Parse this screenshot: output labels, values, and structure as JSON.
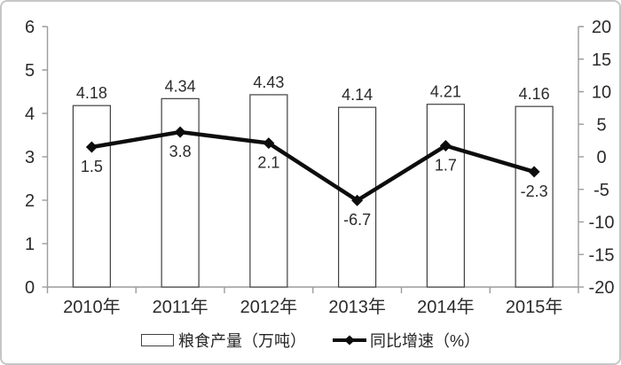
{
  "chart_data": {
    "type": "combo",
    "title": "",
    "categories": [
      "2010年",
      "2011年",
      "2012年",
      "2013年",
      "2014年",
      "2015年"
    ],
    "series": [
      {
        "name": "粮食产量（万吨）",
        "type": "bar",
        "axis": "left",
        "values": [
          4.18,
          4.34,
          4.43,
          4.14,
          4.21,
          4.16
        ],
        "data_labels": [
          "4.18",
          "4.34",
          "4.43",
          "4.14",
          "4.21",
          "4.16"
        ]
      },
      {
        "name": "同比增速（%）",
        "type": "line",
        "axis": "right",
        "values": [
          1.5,
          3.8,
          2.1,
          -6.7,
          1.7,
          -2.3
        ],
        "data_labels": [
          "1.5",
          "3.8",
          "2.1",
          "-6.7",
          "1.7",
          "-2.3"
        ]
      }
    ],
    "left_axis": {
      "min": 0,
      "max": 6,
      "step": 1,
      "tick_labels": [
        "0",
        "1",
        "2",
        "3",
        "4",
        "5",
        "6"
      ]
    },
    "right_axis": {
      "min": -20,
      "max": 20,
      "step": 5,
      "tick_labels": [
        "-20",
        "-15",
        "-10",
        "-5",
        "0",
        "5",
        "10",
        "15",
        "20"
      ]
    },
    "grid": false,
    "legend_position": "bottom"
  },
  "legend": {
    "items": [
      {
        "label": "粮食产量（万吨）",
        "marker": "bar-swatch"
      },
      {
        "label": "同比增速（%）",
        "marker": "line-diamond-swatch"
      }
    ]
  },
  "colors": {
    "background": "#ffffff",
    "frame_border": "#c6c6c6",
    "axis": "#9c9c9c",
    "bar_fill": "#ffffff",
    "bar_stroke": "#404040",
    "line": "#0d0d0d",
    "marker": "#0d0d0d",
    "text": "#2b2b2b"
  }
}
